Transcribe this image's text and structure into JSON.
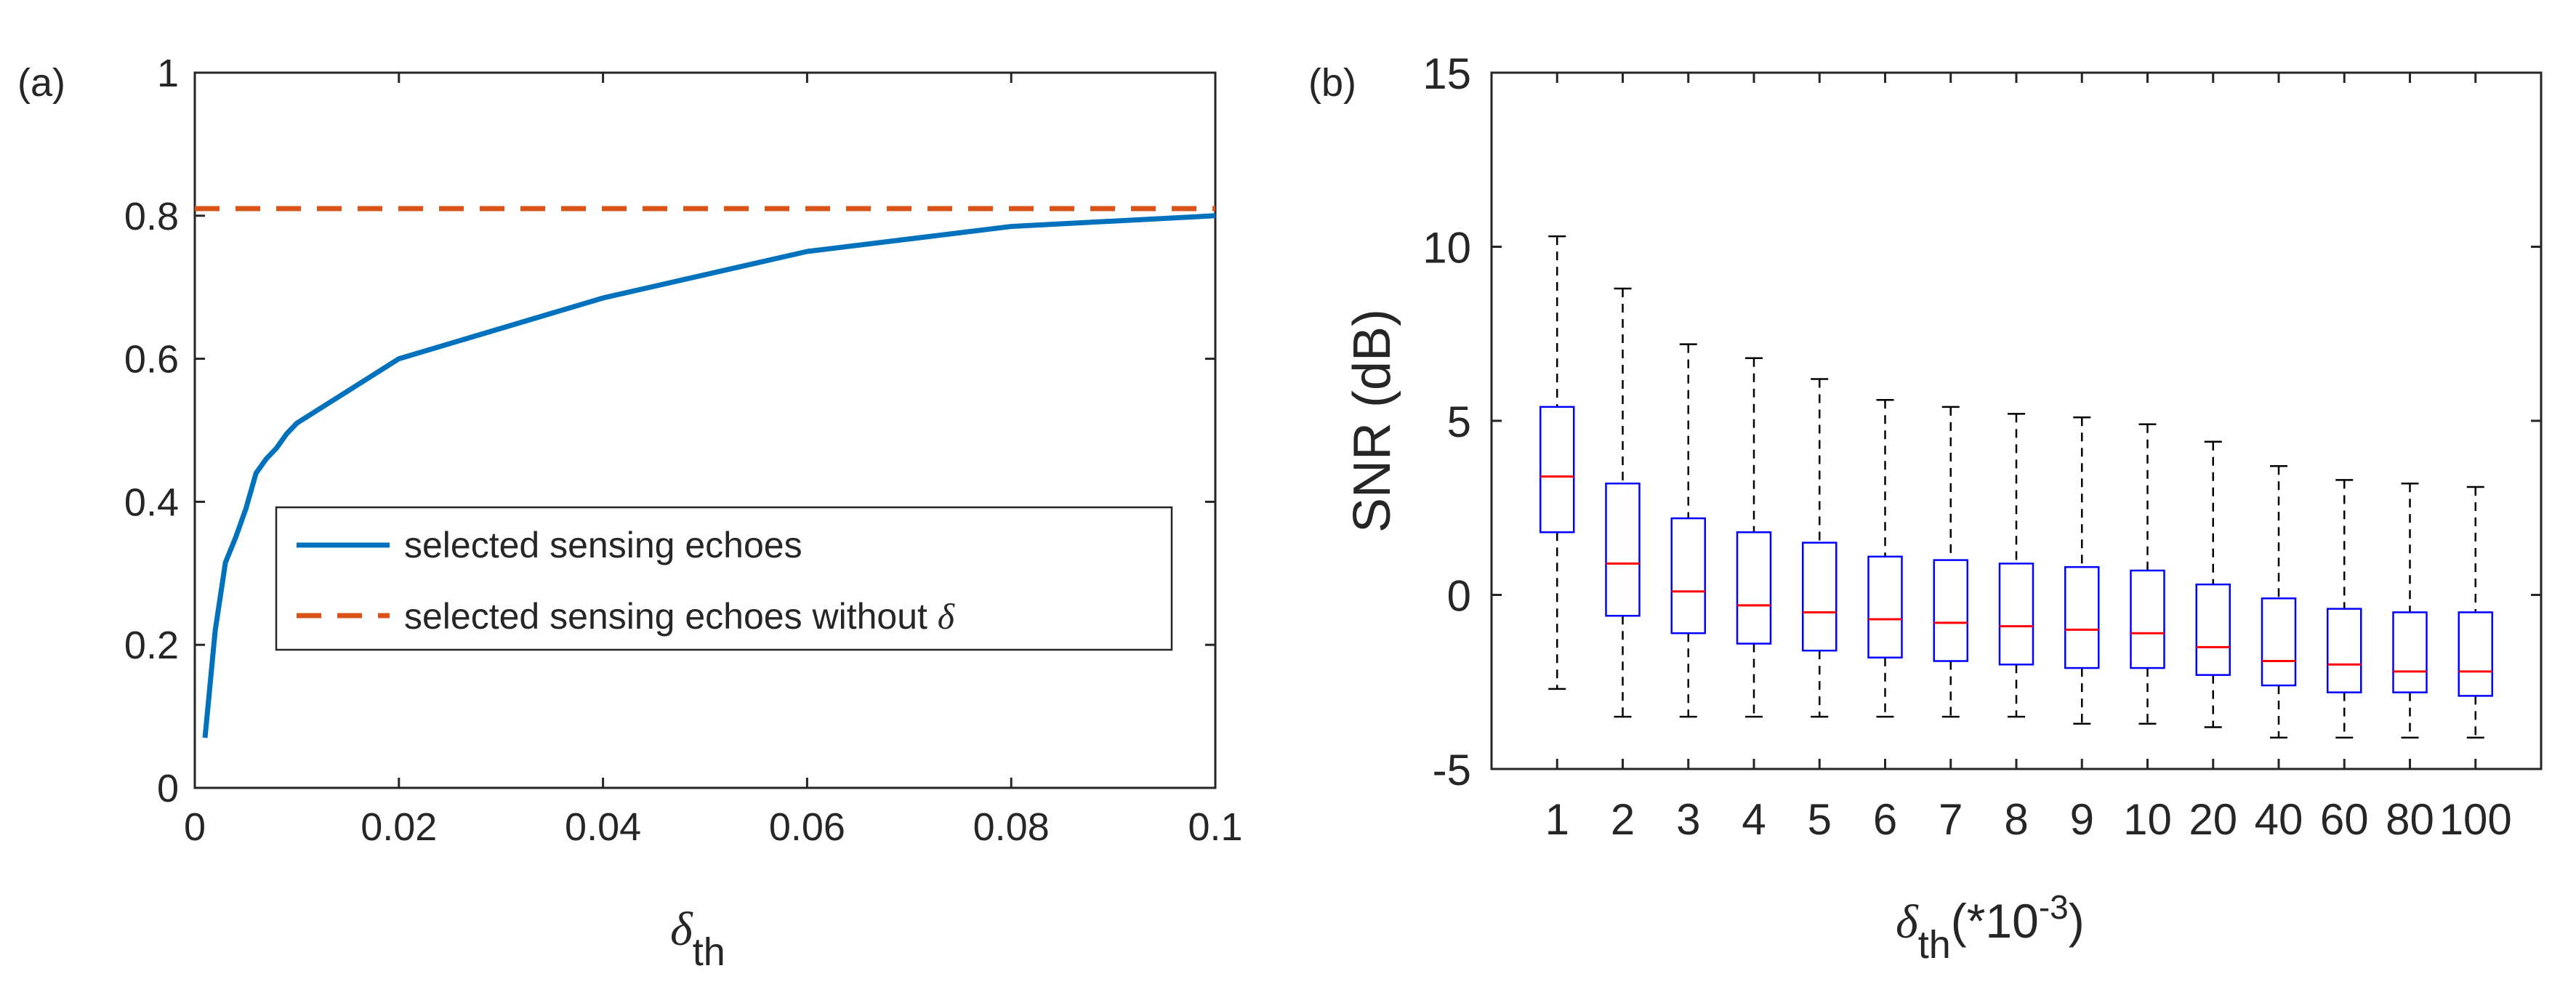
{
  "chart_data": [
    {
      "panel_label": "(a)",
      "type": "line",
      "title": "",
      "xlabel": "δ",
      "xlabel_sub": "th",
      "ylabel": "",
      "xlim": [
        0,
        0.1
      ],
      "ylim": [
        0,
        1
      ],
      "xticks": [
        0,
        0.02,
        0.04,
        0.06,
        0.08,
        0.1
      ],
      "xtick_labels": [
        "0",
        "0.02",
        "0.04",
        "0.06",
        "0.08",
        "0.1"
      ],
      "yticks": [
        0,
        0.2,
        0.4,
        0.6,
        0.8,
        1
      ],
      "ytick_labels": [
        "0",
        "0.2",
        "0.4",
        "0.6",
        "0.8",
        "1"
      ],
      "grid": false,
      "legend_position": "center-right",
      "series": [
        {
          "name": "selected sensing echoes",
          "color": "#0072BD",
          "style": "solid",
          "x": [
            0.001,
            0.002,
            0.003,
            0.004,
            0.005,
            0.006,
            0.007,
            0.008,
            0.009,
            0.01,
            0.02,
            0.04,
            0.06,
            0.08,
            0.1
          ],
          "y": [
            0.07,
            0.22,
            0.315,
            0.35,
            0.39,
            0.44,
            0.46,
            0.475,
            0.495,
            0.51,
            0.6,
            0.685,
            0.75,
            0.785,
            0.8
          ]
        },
        {
          "name": "selected sensing echoes without ",
          "name_symbol": "δ",
          "color": "#D95319",
          "style": "dashed",
          "x": [
            0,
            0.1
          ],
          "y": [
            0.81,
            0.81
          ]
        }
      ]
    },
    {
      "panel_label": "(b)",
      "type": "box",
      "title": "",
      "xlabel": "δ",
      "xlabel_sub": "th",
      "xlabel_suffix": "(*10",
      "xlabel_sup": "-3",
      "xlabel_close": ")",
      "ylabel": "SNR (dB)",
      "ylim": [
        -5,
        15
      ],
      "yticks": [
        -5,
        0,
        5,
        10,
        15
      ],
      "ytick_labels": [
        "-5",
        "0",
        "5",
        "10",
        "15"
      ],
      "grid": false,
      "box_color": "#0000FF",
      "median_color": "#FF0000",
      "whisker_color": "#000000",
      "categories": [
        "1",
        "2",
        "3",
        "4",
        "5",
        "6",
        "7",
        "8",
        "9",
        "10",
        "20",
        "40",
        "60",
        "80",
        "100"
      ],
      "boxes": [
        {
          "min": -2.7,
          "q1": 1.8,
          "median": 3.4,
          "q3": 5.4,
          "max": 10.3
        },
        {
          "min": -3.5,
          "q1": -0.6,
          "median": 0.9,
          "q3": 3.2,
          "max": 8.8
        },
        {
          "min": -3.5,
          "q1": -1.1,
          "median": 0.1,
          "q3": 2.2,
          "max": 7.2
        },
        {
          "min": -3.5,
          "q1": -1.4,
          "median": -0.3,
          "q3": 1.8,
          "max": 6.8
        },
        {
          "min": -3.5,
          "q1": -1.6,
          "median": -0.5,
          "q3": 1.5,
          "max": 6.2
        },
        {
          "min": -3.5,
          "q1": -1.8,
          "median": -0.7,
          "q3": 1.1,
          "max": 5.6
        },
        {
          "min": -3.5,
          "q1": -1.9,
          "median": -0.8,
          "q3": 1.0,
          "max": 5.4
        },
        {
          "min": -3.5,
          "q1": -2.0,
          "median": -0.9,
          "q3": 0.9,
          "max": 5.2
        },
        {
          "min": -3.7,
          "q1": -2.1,
          "median": -1.0,
          "q3": 0.8,
          "max": 5.1
        },
        {
          "min": -3.7,
          "q1": -2.1,
          "median": -1.1,
          "q3": 0.7,
          "max": 4.9
        },
        {
          "min": -3.8,
          "q1": -2.3,
          "median": -1.5,
          "q3": 0.3,
          "max": 4.4
        },
        {
          "min": -4.1,
          "q1": -2.6,
          "median": -1.9,
          "q3": -0.1,
          "max": 3.7
        },
        {
          "min": -4.1,
          "q1": -2.8,
          "median": -2.0,
          "q3": -0.4,
          "max": 3.3
        },
        {
          "min": -4.1,
          "q1": -2.8,
          "median": -2.2,
          "q3": -0.5,
          "max": 3.2
        },
        {
          "min": -4.1,
          "q1": -2.9,
          "median": -2.2,
          "q3": -0.5,
          "max": 3.1
        }
      ]
    }
  ]
}
